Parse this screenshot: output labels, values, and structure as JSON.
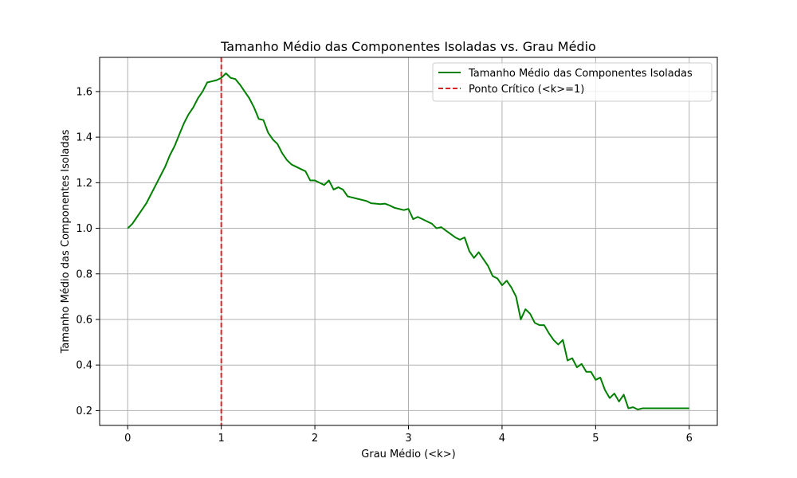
{
  "chart_data": {
    "type": "line",
    "title": "Tamanho Médio das Componentes Isoladas vs. Grau Médio",
    "xlabel": "Grau Médio (<k>)",
    "ylabel": "Tamanho Médio das Componentes Isoladas",
    "xlim": [
      -0.3,
      6.3
    ],
    "ylim": [
      0.135,
      1.75
    ],
    "xticks": [
      0,
      1,
      2,
      3,
      4,
      5,
      6
    ],
    "yticks": [
      0.2,
      0.4,
      0.6,
      0.8,
      1.0,
      1.2,
      1.4,
      1.6
    ],
    "xtick_labels": [
      "0",
      "1",
      "2",
      "3",
      "4",
      "5",
      "6"
    ],
    "ytick_labels": [
      "0.2",
      "0.4",
      "0.6",
      "0.8",
      "1.0",
      "1.2",
      "1.4",
      "1.6"
    ],
    "grid": true,
    "legend_position": "top-right",
    "series": [
      {
        "name": "Tamanho Médio das Componentes Isoladas",
        "color": "#008000",
        "style": "solid",
        "x": [
          0.0,
          0.05,
          0.1,
          0.15,
          0.2,
          0.25,
          0.3,
          0.35,
          0.4,
          0.45,
          0.5,
          0.55,
          0.6,
          0.65,
          0.7,
          0.75,
          0.8,
          0.85,
          0.9,
          0.95,
          1.0,
          1.05,
          1.1,
          1.15,
          1.2,
          1.25,
          1.3,
          1.35,
          1.4,
          1.45,
          1.5,
          1.55,
          1.6,
          1.65,
          1.7,
          1.75,
          1.8,
          1.85,
          1.9,
          1.95,
          2.0,
          2.05,
          2.1,
          2.15,
          2.2,
          2.25,
          2.3,
          2.35,
          2.4,
          2.45,
          2.5,
          2.55,
          2.6,
          2.65,
          2.7,
          2.75,
          2.8,
          2.85,
          2.9,
          2.95,
          3.0,
          3.05,
          3.1,
          3.15,
          3.2,
          3.25,
          3.3,
          3.35,
          3.4,
          3.45,
          3.5,
          3.55,
          3.6,
          3.65,
          3.7,
          3.75,
          3.8,
          3.85,
          3.9,
          3.95,
          4.0,
          4.05,
          4.1,
          4.15,
          4.2,
          4.25,
          4.3,
          4.35,
          4.4,
          4.45,
          4.5,
          4.55,
          4.6,
          4.65,
          4.7,
          4.75,
          4.8,
          4.85,
          4.9,
          4.95,
          5.0,
          5.05,
          5.1,
          5.15,
          5.2,
          5.25,
          5.3,
          5.35,
          5.4,
          5.45,
          5.5,
          5.55,
          5.6,
          5.65,
          5.7,
          5.75,
          5.8,
          5.85,
          5.9,
          5.95,
          6.0
        ],
        "y": [
          1.0,
          1.02,
          1.05,
          1.08,
          1.11,
          1.15,
          1.19,
          1.23,
          1.27,
          1.32,
          1.36,
          1.41,
          1.46,
          1.5,
          1.53,
          1.57,
          1.6,
          1.64,
          1.645,
          1.65,
          1.66,
          1.68,
          1.66,
          1.655,
          1.63,
          1.6,
          1.57,
          1.53,
          1.48,
          1.475,
          1.42,
          1.39,
          1.37,
          1.33,
          1.3,
          1.28,
          1.27,
          1.26,
          1.25,
          1.21,
          1.21,
          1.2,
          1.19,
          1.21,
          1.17,
          1.18,
          1.17,
          1.14,
          1.135,
          1.13,
          1.125,
          1.12,
          1.11,
          1.108,
          1.106,
          1.108,
          1.1,
          1.09,
          1.085,
          1.08,
          1.085,
          1.04,
          1.05,
          1.04,
          1.03,
          1.02,
          1.0,
          1.005,
          0.99,
          0.975,
          0.96,
          0.95,
          0.96,
          0.9,
          0.87,
          0.895,
          0.865,
          0.835,
          0.79,
          0.78,
          0.75,
          0.77,
          0.74,
          0.7,
          0.6,
          0.645,
          0.625,
          0.585,
          0.575,
          0.575,
          0.54,
          0.51,
          0.49,
          0.51,
          0.42,
          0.43,
          0.39,
          0.405,
          0.37,
          0.37,
          0.335,
          0.345,
          0.29,
          0.255,
          0.275,
          0.24,
          0.27,
          0.21,
          0.215,
          0.205,
          0.21,
          0.21,
          0.21,
          0.21,
          0.21,
          0.21,
          0.21,
          0.21,
          0.21,
          0.21,
          0.21
        ]
      },
      {
        "name": "Ponto Crítico (<k>=1)",
        "color": "#d62728",
        "style": "dashed",
        "vline_x": 1
      }
    ]
  }
}
